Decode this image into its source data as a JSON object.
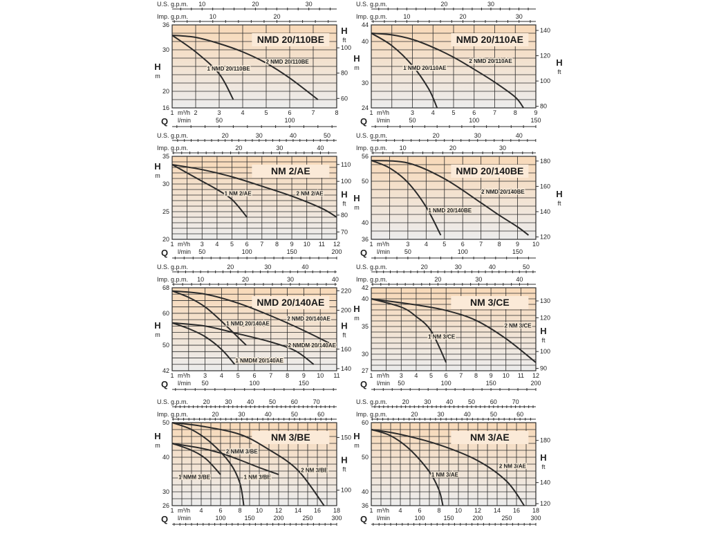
{
  "axis_labels": {
    "h": "H",
    "m": "m",
    "ft": "ft",
    "q": "Q",
    "m3h": "m³/h",
    "lmin": "l/min",
    "us": "U.S. g.p.m.",
    "imp": "Imp. g.p.m."
  },
  "colors": {
    "plot_top": "#f8d9b8",
    "plot_bottom": "#ececec",
    "grid": "#2b2b2b",
    "curve": "#2a2a2a"
  },
  "chart_data": [
    {
      "type": "line",
      "title": "NMD 20/110BE",
      "xlabel": "Q m³/h",
      "ylabel": "H m",
      "xlim": [
        1,
        8
      ],
      "x_ticks": [
        1,
        2,
        3,
        4,
        5,
        6,
        7,
        8
      ],
      "ylim": [
        16,
        36
      ],
      "y_ticks": [
        16,
        20,
        30,
        36
      ],
      "y_grid_step": 2,
      "ft_ticks": [
        60,
        80,
        100
      ],
      "lmin_ticks": [
        50,
        100
      ],
      "us_gpm_ticks": [
        10,
        20,
        30
      ],
      "imp_gpm_ticks": [
        10,
        20
      ],
      "series": [
        {
          "name": "1 NMD 20/110BE",
          "points": [
            [
              1,
              33.5
            ],
            [
              2,
              29.5
            ],
            [
              3,
              24.2
            ],
            [
              3.6,
              18
            ]
          ],
          "label_at": [
            3.4,
            25.5
          ]
        },
        {
          "name": "2 NMD 20/110BE",
          "points": [
            [
              1,
              33.5
            ],
            [
              2,
              33
            ],
            [
              3,
              31.5
            ],
            [
              4,
              29.5
            ],
            [
              5,
              26.8
            ],
            [
              6,
              23.2
            ],
            [
              7.2,
              18
            ]
          ],
          "label_at": [
            5.9,
            27.2
          ]
        }
      ]
    },
    {
      "type": "line",
      "title": "NMD 20/110AE",
      "xlabel": "Q m³/h",
      "ylabel": "H m",
      "xlim": [
        1,
        9
      ],
      "x_ticks": [
        1,
        3,
        4,
        5,
        6,
        7,
        8,
        9
      ],
      "ylim": [
        24,
        44
      ],
      "y_ticks": [
        24,
        30,
        40,
        44
      ],
      "y_grid_step": 2,
      "ft_ticks": [
        80,
        100,
        120,
        140
      ],
      "lmin_ticks": [
        50,
        100,
        150
      ],
      "us_gpm_ticks": [
        20,
        30
      ],
      "imp_gpm_ticks": [
        10,
        20,
        30
      ],
      "series": [
        {
          "name": "1 NMD 20/110AE",
          "points": [
            [
              1,
              42
            ],
            [
              2,
              39
            ],
            [
              3,
              34.2
            ],
            [
              3.8,
              28.5
            ],
            [
              4.2,
              24
            ]
          ],
          "label_at": [
            3.6,
            33.7
          ]
        },
        {
          "name": "2 NMD 20/110AE",
          "points": [
            [
              1,
              42
            ],
            [
              2,
              41.6
            ],
            [
              3,
              40.5
            ],
            [
              4,
              38.6
            ],
            [
              5,
              36.2
            ],
            [
              6,
              33.3
            ],
            [
              7,
              30.2
            ],
            [
              8,
              26.6
            ],
            [
              8.4,
              24
            ]
          ],
          "label_at": [
            6.8,
            35.3
          ]
        }
      ]
    },
    {
      "type": "line",
      "title": "NM 2/AE",
      "xlabel": "Q m³/h",
      "ylabel": "H m",
      "xlim": [
        1,
        12
      ],
      "x_ticks": [
        1,
        3,
        4,
        5,
        6,
        7,
        8,
        9,
        10,
        11,
        12
      ],
      "ylim": [
        20,
        35
      ],
      "y_ticks": [
        20,
        25,
        30,
        35
      ],
      "y_grid_step": 1,
      "ft_ticks": [
        70,
        80,
        100,
        110
      ],
      "lmin_ticks": [
        50,
        100,
        150,
        200
      ],
      "us_gpm_ticks": [
        20,
        30,
        40,
        50
      ],
      "imp_gpm_ticks": [
        20,
        30,
        40
      ],
      "series": [
        {
          "name": "1 NM 2/AE",
          "points": [
            [
              1,
              33.5
            ],
            [
              2,
              32
            ],
            [
              3,
              30.5
            ],
            [
              4,
              29
            ],
            [
              5,
              27.2
            ],
            [
              6,
              24
            ]
          ],
          "label_at": [
            5.4,
            28.3
          ]
        },
        {
          "name": "2 NM 2/AE",
          "points": [
            [
              1,
              33.5
            ],
            [
              3,
              32.6
            ],
            [
              5,
              31.3
            ],
            [
              7,
              29.6
            ],
            [
              9,
              27.8
            ],
            [
              11,
              25.6
            ],
            [
              12,
              24
            ]
          ],
          "label_at": [
            10.2,
            28.3
          ]
        }
      ]
    },
    {
      "type": "line",
      "title": "NMD 20/140BE",
      "xlabel": "Q m³/h",
      "ylabel": "H m",
      "xlim": [
        1,
        10
      ],
      "x_ticks": [
        1,
        3,
        4,
        5,
        6,
        7,
        8,
        9,
        10
      ],
      "ylim": [
        36,
        56
      ],
      "y_ticks": [
        36,
        40,
        50,
        56
      ],
      "y_grid_step": 2,
      "ft_ticks": [
        120,
        140,
        160,
        180
      ],
      "lmin_ticks": [
        50,
        100,
        150
      ],
      "us_gpm_ticks": [
        20,
        30,
        40
      ],
      "imp_gpm_ticks": [
        10,
        20,
        30
      ],
      "series": [
        {
          "name": "1 NMD 20/140BE",
          "points": [
            [
              1,
              55
            ],
            [
              2,
              53.2
            ],
            [
              3,
              49.7
            ],
            [
              4,
              43.8
            ],
            [
              4.8,
              37
            ]
          ],
          "label_at": [
            5.3,
            43
          ]
        },
        {
          "name": "2 NMD 20/140BE",
          "points": [
            [
              1,
              55
            ],
            [
              3,
              54.4
            ],
            [
              5,
              50.6
            ],
            [
              7,
              44.8
            ],
            [
              8,
              41.8
            ],
            [
              9,
              39
            ],
            [
              9.6,
              37
            ]
          ],
          "label_at": [
            8.2,
            47.5
          ]
        }
      ]
    },
    {
      "type": "line",
      "title": "NMD 20/140AE",
      "xlabel": "Q m³/h",
      "ylabel": "H m",
      "xlim": [
        1,
        11
      ],
      "x_ticks": [
        1,
        3,
        4,
        5,
        6,
        7,
        8,
        9,
        10,
        11
      ],
      "ylim": [
        42,
        68
      ],
      "y_ticks": [
        42,
        50,
        60,
        68
      ],
      "y_grid_step": 2,
      "ft_ticks": [
        140,
        160,
        200,
        220
      ],
      "lmin_ticks": [
        50,
        100,
        150
      ],
      "us_gpm_ticks": [
        20,
        30,
        40
      ],
      "imp_gpm_ticks": [
        10,
        20,
        30,
        40
      ],
      "series": [
        {
          "name": "1 NMD 20/140AE",
          "points": [
            [
              1,
              67
            ],
            [
              2,
              65
            ],
            [
              3,
              62
            ],
            [
              4,
              57.5
            ],
            [
              5,
              52.5
            ],
            [
              5.5,
              50
            ]
          ],
          "label_at": [
            5.6,
            56.8
          ]
        },
        {
          "name": "2 NMD 20/140AE",
          "points": [
            [
              1,
              67
            ],
            [
              3,
              66
            ],
            [
              5,
              63.2
            ],
            [
              7,
              59.2
            ],
            [
              9,
              54.6
            ],
            [
              10.8,
              50
            ]
          ],
          "label_at": [
            9.3,
            58.4
          ]
        },
        {
          "name": "2 NMDM 20/140AE",
          "points": [
            [
              1,
              57
            ],
            [
              3,
              56
            ],
            [
              5,
              53.6
            ],
            [
              7,
              51
            ],
            [
              8.5,
              48.2
            ],
            [
              9.6,
              44
            ]
          ],
          "label_at": [
            9.5,
            50
          ]
        },
        {
          "name": "1 NMDM 20/140AE",
          "points": [
            [
              1,
              57
            ],
            [
              2,
              55.2
            ],
            [
              3,
              52.7
            ],
            [
              4,
              48.7
            ],
            [
              4.8,
              44
            ]
          ],
          "label_at": [
            6.3,
            45.3
          ]
        }
      ]
    },
    {
      "type": "line",
      "title": "NM 3/CE",
      "xlabel": "Q m³/h",
      "ylabel": "H m",
      "xlim": [
        1,
        12
      ],
      "x_ticks": [
        1,
        3,
        4,
        5,
        6,
        7,
        8,
        9,
        10,
        11,
        12
      ],
      "ylim": [
        27,
        42
      ],
      "y_ticks": [
        27,
        30,
        35,
        40,
        42
      ],
      "y_grid_step": 1,
      "ft_ticks": [
        90,
        100,
        120,
        130
      ],
      "lmin_ticks": [
        50,
        100,
        150,
        200
      ],
      "us_gpm_ticks": [
        20,
        30,
        40,
        50
      ],
      "imp_gpm_ticks": [
        20,
        30,
        40
      ],
      "series": [
        {
          "name": "1 NM 3/CE",
          "points": [
            [
              1,
              40
            ],
            [
              3,
              38.5
            ],
            [
              4,
              36.8
            ],
            [
              5,
              34.2
            ],
            [
              6,
              28.5
            ]
          ],
          "label_at": [
            5.7,
            33.2
          ]
        },
        {
          "name": "2 NM 3/CE",
          "points": [
            [
              1,
              40
            ],
            [
              4,
              38.9
            ],
            [
              6,
              37.9
            ],
            [
              8,
              36.1
            ],
            [
              10,
              32.8
            ],
            [
              12,
              28.5
            ]
          ],
          "label_at": [
            10.8,
            35.2
          ]
        }
      ]
    },
    {
      "type": "line",
      "title": "NM 3/BE",
      "xlabel": "Q m³/h",
      "ylabel": "H m",
      "xlim": [
        1,
        18
      ],
      "x_ticks": [
        1,
        4,
        6,
        8,
        10,
        12,
        14,
        16,
        18
      ],
      "ylim": [
        26,
        50
      ],
      "y_ticks": [
        26,
        30,
        40,
        50
      ],
      "y_grid_step": 2,
      "ft_ticks": [
        100,
        150
      ],
      "lmin_ticks": [
        100,
        150,
        200,
        250,
        300
      ],
      "us_gpm_ticks": [
        20,
        30,
        40,
        50,
        60,
        70
      ],
      "imp_gpm_ticks": [
        20,
        30,
        40,
        50,
        60
      ],
      "series": [
        {
          "name": "1 NM 3/BE",
          "points": [
            [
              1,
              50
            ],
            [
              3,
              48
            ],
            [
              5,
              44.2
            ],
            [
              7,
              38.2
            ],
            [
              8,
              32.5
            ],
            [
              8.4,
              26
            ]
          ],
          "label_at": [
            9.8,
            34.3
          ]
        },
        {
          "name": "2 NM 3/BE",
          "points": [
            [
              1,
              50
            ],
            [
              4,
              49
            ],
            [
              8,
              46.6
            ],
            [
              11,
              42.2
            ],
            [
              14,
              36.2
            ],
            [
              16.7,
              26
            ]
          ],
          "label_at": [
            15.7,
            36.3
          ]
        },
        {
          "name": "2 NMM 3/BE",
          "points": [
            [
              1,
              44
            ],
            [
              4,
              42.6
            ],
            [
              6,
              41.2
            ],
            [
              8,
              39.2
            ],
            [
              10,
              37
            ],
            [
              12,
              35
            ]
          ],
          "label_at": [
            8.2,
            41.7
          ]
        },
        {
          "name": "1 NMM 3/BE",
          "points": [
            [
              1,
              44
            ],
            [
              3,
              42
            ],
            [
              4.5,
              39.5
            ],
            [
              6,
              35
            ]
          ],
          "label_at": [
            3.3,
            34.3
          ]
        }
      ]
    },
    {
      "type": "line",
      "title": "NM 3/AE",
      "xlabel": "Q m³/h",
      "ylabel": "H m",
      "xlim": [
        1,
        18
      ],
      "x_ticks": [
        1,
        4,
        6,
        8,
        10,
        12,
        14,
        16,
        18
      ],
      "ylim": [
        36,
        60
      ],
      "y_ticks": [
        36,
        40,
        50,
        60
      ],
      "y_grid_step": 2,
      "ft_ticks": [
        120,
        140,
        180
      ],
      "lmin_ticks": [
        100,
        150,
        200,
        250,
        300
      ],
      "us_gpm_ticks": [
        20,
        30,
        40,
        50,
        60,
        70
      ],
      "imp_gpm_ticks": [
        20,
        30,
        40,
        50,
        60
      ],
      "series": [
        {
          "name": "1 NM 3/AE",
          "points": [
            [
              1,
              58
            ],
            [
              3,
              56.2
            ],
            [
              5,
              52.2
            ],
            [
              7,
              45.8
            ],
            [
              8,
              40.5
            ],
            [
              8.4,
              36
            ]
          ],
          "label_at": [
            8.6,
            45
          ]
        },
        {
          "name": "2 NM 3/AE",
          "points": [
            [
              1,
              58
            ],
            [
              4,
              56.6
            ],
            [
              8,
              53.6
            ],
            [
              12,
              49
            ],
            [
              15,
              43
            ],
            [
              16.8,
              36
            ]
          ],
          "label_at": [
            15.6,
            47.5
          ]
        }
      ]
    }
  ]
}
